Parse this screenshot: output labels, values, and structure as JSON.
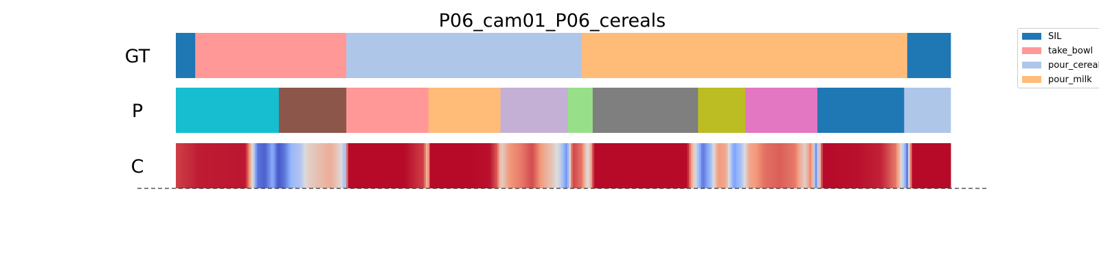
{
  "chart_data": {
    "type": "segmentation",
    "title": "P06_cam01_P06_cereals",
    "frame_range": [
      0,
      1000
    ],
    "rows": [
      {
        "label": "GT",
        "segments": [
          {
            "start": 0,
            "end": 25,
            "color": "#1f77b4"
          },
          {
            "start": 25,
            "end": 220,
            "color": "#ff9896"
          },
          {
            "start": 220,
            "end": 524,
            "color": "#aec7e8"
          },
          {
            "start": 524,
            "end": 944,
            "color": "#ffbb78"
          },
          {
            "start": 944,
            "end": 1000,
            "color": "#1f77b4"
          }
        ]
      },
      {
        "label": "P",
        "segments": [
          {
            "start": 0,
            "end": 133,
            "color": "#17becf"
          },
          {
            "start": 133,
            "end": 220,
            "color": "#8c564b"
          },
          {
            "start": 220,
            "end": 326,
            "color": "#ff9896"
          },
          {
            "start": 326,
            "end": 419,
            "color": "#ffbb78"
          },
          {
            "start": 419,
            "end": 506,
            "color": "#c5b0d5"
          },
          {
            "start": 506,
            "end": 538,
            "color": "#98df8a"
          },
          {
            "start": 538,
            "end": 674,
            "color": "#7f7f7f"
          },
          {
            "start": 674,
            "end": 735,
            "color": "#bcbd22"
          },
          {
            "start": 735,
            "end": 828,
            "color": "#e377c2"
          },
          {
            "start": 828,
            "end": 940,
            "color": "#1f77b4"
          },
          {
            "start": 940,
            "end": 1000,
            "color": "#aec7e8"
          }
        ]
      },
      {
        "label": "C",
        "colormap": "coolwarm",
        "confidence_points": [
          [
            0,
            0.9
          ],
          [
            30,
            0.96
          ],
          [
            90,
            0.97
          ],
          [
            95,
            0.75
          ],
          [
            100,
            0.45
          ],
          [
            105,
            0.1
          ],
          [
            115,
            0.05
          ],
          [
            125,
            0.25
          ],
          [
            132,
            0.03
          ],
          [
            140,
            0.1
          ],
          [
            150,
            0.3
          ],
          [
            160,
            0.35
          ],
          [
            170,
            0.55
          ],
          [
            185,
            0.62
          ],
          [
            200,
            0.68
          ],
          [
            215,
            0.5
          ],
          [
            218,
            0.2
          ],
          [
            222,
            0.99
          ],
          [
            250,
            0.99
          ],
          [
            295,
            0.99
          ],
          [
            320,
            0.9
          ],
          [
            325,
            0.6
          ],
          [
            328,
            0.99
          ],
          [
            380,
            0.99
          ],
          [
            405,
            0.98
          ],
          [
            415,
            0.85
          ],
          [
            420,
            0.55
          ],
          [
            430,
            0.75
          ],
          [
            445,
            0.8
          ],
          [
            460,
            0.88
          ],
          [
            475,
            0.7
          ],
          [
            485,
            0.6
          ],
          [
            495,
            0.45
          ],
          [
            505,
            0.15
          ],
          [
            512,
            0.9
          ],
          [
            525,
            0.8
          ],
          [
            532,
            0.45
          ],
          [
            540,
            0.99
          ],
          [
            600,
            0.99
          ],
          [
            660,
            0.99
          ],
          [
            670,
            0.5
          ],
          [
            680,
            0.1
          ],
          [
            690,
            0.3
          ],
          [
            700,
            0.75
          ],
          [
            710,
            0.7
          ],
          [
            720,
            0.2
          ],
          [
            730,
            0.35
          ],
          [
            740,
            0.7
          ],
          [
            760,
            0.82
          ],
          [
            780,
            0.85
          ],
          [
            800,
            0.8
          ],
          [
            812,
            0.55
          ],
          [
            820,
            0.82
          ],
          [
            826,
            0.15
          ],
          [
            835,
            0.99
          ],
          [
            880,
            0.98
          ],
          [
            910,
            0.95
          ],
          [
            930,
            0.8
          ],
          [
            938,
            0.45
          ],
          [
            944,
            0.1
          ],
          [
            950,
            0.99
          ],
          [
            1000,
            0.99
          ]
        ]
      }
    ],
    "legend": {
      "placement": "top-right",
      "entries": [
        {
          "label": "SIL",
          "color": "#1f77b4"
        },
        {
          "label": "take_bowl",
          "color": "#ff9896"
        },
        {
          "label": "pour_cereals",
          "color": "#aec7e8"
        },
        {
          "label": "pour_milk",
          "color": "#ffbb78"
        }
      ]
    },
    "baseline_style": "dashed"
  }
}
